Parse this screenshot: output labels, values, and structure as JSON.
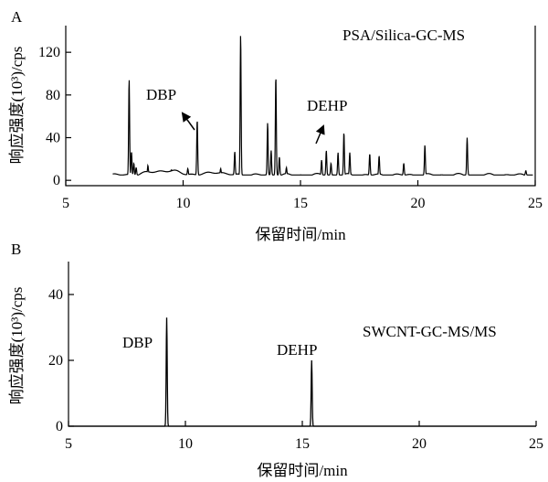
{
  "chart_data": [
    {
      "type": "line",
      "panel_label": "A",
      "annotation": "PSA/Silica-GC-MS",
      "xlabel": "保留时间/min",
      "ylabel": "响应强度(10³)/cps",
      "xlim": [
        5,
        25
      ],
      "ylim": [
        -5,
        145
      ],
      "xticks": [
        5,
        10,
        15,
        20,
        25
      ],
      "yticks": [
        0,
        40,
        80,
        120
      ],
      "grid": false,
      "baseline": 5,
      "trace_start": 7.0,
      "trace_end": 24.9,
      "peaks": [
        {
          "x": 7.7,
          "y": 95
        },
        {
          "x": 7.8,
          "y": 27
        },
        {
          "x": 7.9,
          "y": 16
        },
        {
          "x": 8.0,
          "y": 12
        },
        {
          "x": 8.5,
          "y": 14
        },
        {
          "x": 9.5,
          "y": 10
        },
        {
          "x": 10.2,
          "y": 11
        },
        {
          "x": 10.6,
          "y": 57
        },
        {
          "x": 11.6,
          "y": 11
        },
        {
          "x": 12.2,
          "y": 27
        },
        {
          "x": 12.45,
          "y": 137
        },
        {
          "x": 13.6,
          "y": 54
        },
        {
          "x": 13.75,
          "y": 28
        },
        {
          "x": 13.95,
          "y": 98
        },
        {
          "x": 14.1,
          "y": 22
        },
        {
          "x": 14.4,
          "y": 12
        },
        {
          "x": 15.9,
          "y": 19
        },
        {
          "x": 16.1,
          "y": 28
        },
        {
          "x": 16.3,
          "y": 16
        },
        {
          "x": 16.6,
          "y": 26
        },
        {
          "x": 16.85,
          "y": 45
        },
        {
          "x": 17.1,
          "y": 26
        },
        {
          "x": 17.95,
          "y": 25
        },
        {
          "x": 18.35,
          "y": 23
        },
        {
          "x": 19.4,
          "y": 16
        },
        {
          "x": 20.3,
          "y": 33
        },
        {
          "x": 22.1,
          "y": 40
        },
        {
          "x": 24.6,
          "y": 9
        }
      ],
      "labeled_peaks": [
        {
          "label": "DBP",
          "x": 10.6,
          "y": 57
        },
        {
          "label": "DEHP",
          "x": 15.85,
          "y": 20
        }
      ]
    },
    {
      "type": "line",
      "panel_label": "B",
      "annotation": "SWCNT-GC-MS/MS",
      "xlabel": "保留时间/min",
      "ylabel": "响应强度(10³)/cps",
      "xlim": [
        5,
        25
      ],
      "ylim": [
        0,
        50
      ],
      "xticks": [
        5,
        10,
        15,
        20,
        25
      ],
      "yticks": [
        0,
        20,
        40
      ],
      "grid": false,
      "baseline": 0,
      "trace_start": 5.0,
      "trace_end": 25.0,
      "peaks": [
        {
          "x": 9.2,
          "y": 33
        },
        {
          "x": 15.4,
          "y": 20
        }
      ],
      "labeled_peaks": [
        {
          "label": "DBP",
          "x": 9.2,
          "y": 33
        },
        {
          "label": "DEHP",
          "x": 15.4,
          "y": 20
        }
      ]
    }
  ]
}
